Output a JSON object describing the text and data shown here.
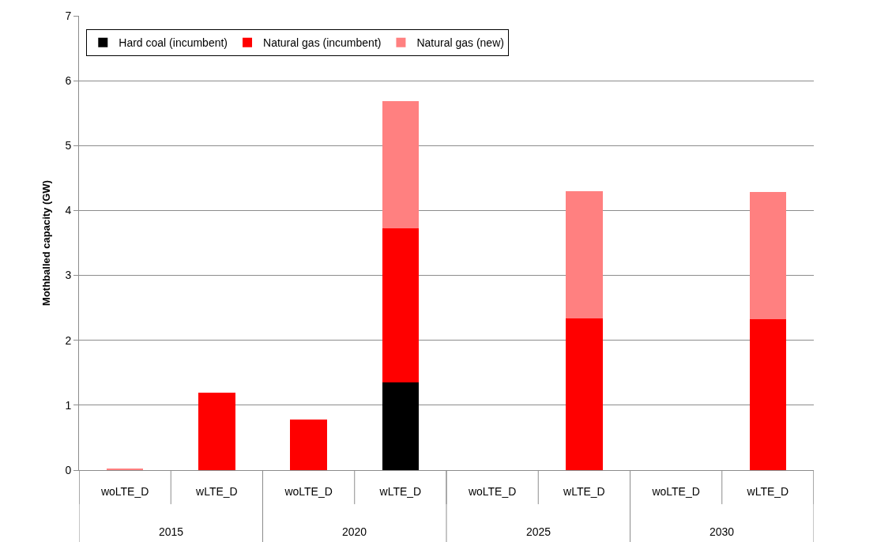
{
  "chart_data": {
    "type": "bar",
    "stacked": true,
    "ylabel": "Mothballed capacity (GW)",
    "categories": [
      "woLTE_D",
      "wLTE_D",
      "woLTE_D",
      "wLTE_D",
      "woLTE_D",
      "wLTE_D",
      "woLTE_D",
      "wLTE_D"
    ],
    "annotations": [
      "2015",
      "2020",
      "2025",
      "2030"
    ],
    "series": [
      {
        "name": "Hard coal (incumbent)",
        "color": "#000000",
        "values": [
          0,
          0,
          0,
          1.35,
          0,
          0,
          0,
          0
        ]
      },
      {
        "name": "Natural gas (incumbent)",
        "color": "#ff0000",
        "values": [
          0,
          1.19,
          0.78,
          2.37,
          0,
          2.34,
          0,
          2.32
        ]
      },
      {
        "name": "Natural gas (new)",
        "color": "#ff8080",
        "values": [
          0.02,
          0,
          0,
          1.96,
          0,
          1.96,
          0,
          1.96
        ]
      }
    ],
    "ylim": [
      0,
      7
    ],
    "yticks": [
      0,
      1,
      2,
      3,
      4,
      5,
      6,
      7
    ],
    "grid": "y",
    "legend": "top left"
  }
}
